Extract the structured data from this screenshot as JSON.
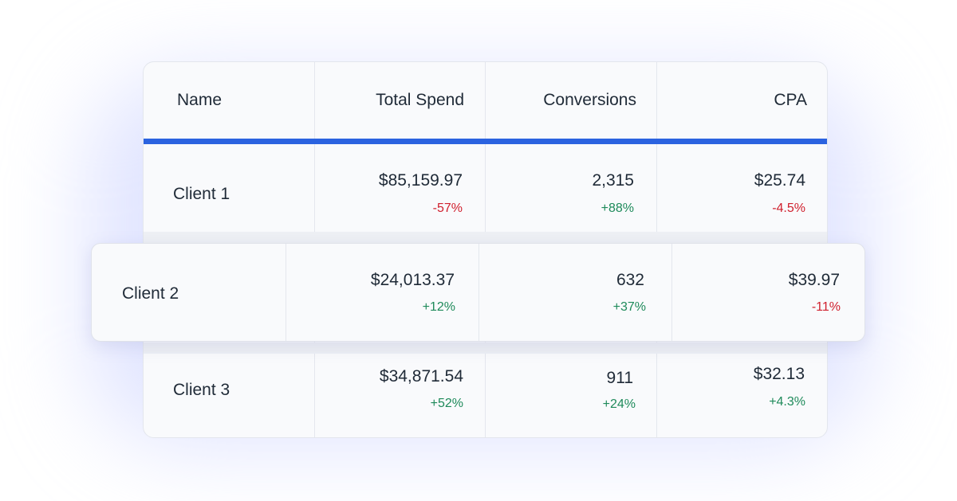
{
  "colors": {
    "accent": "#2b63e0",
    "positive": "#1e8a5a",
    "negative": "#d0202e"
  },
  "table": {
    "columns": [
      "Name",
      "Total Spend",
      "Conversions",
      "CPA"
    ],
    "rows": [
      {
        "name": "Client 1",
        "spend": "$85,159.97",
        "spend_delta": "-57%",
        "conversions": "2,315",
        "conversions_delta": "+88%",
        "cpa": "$25.74",
        "cpa_delta": "-4.5%"
      },
      {
        "name": "Client 2",
        "spend": "$24,013.37",
        "spend_delta": "+12%",
        "conversions": "632",
        "conversions_delta": "+37%",
        "cpa": "$39.97",
        "cpa_delta": "-11%"
      },
      {
        "name": "Client 3",
        "spend": "$34,871.54",
        "spend_delta": "+52%",
        "conversions": "911",
        "conversions_delta": "+24%",
        "cpa": "$32.13",
        "cpa_delta": "+4.3%"
      }
    ]
  }
}
